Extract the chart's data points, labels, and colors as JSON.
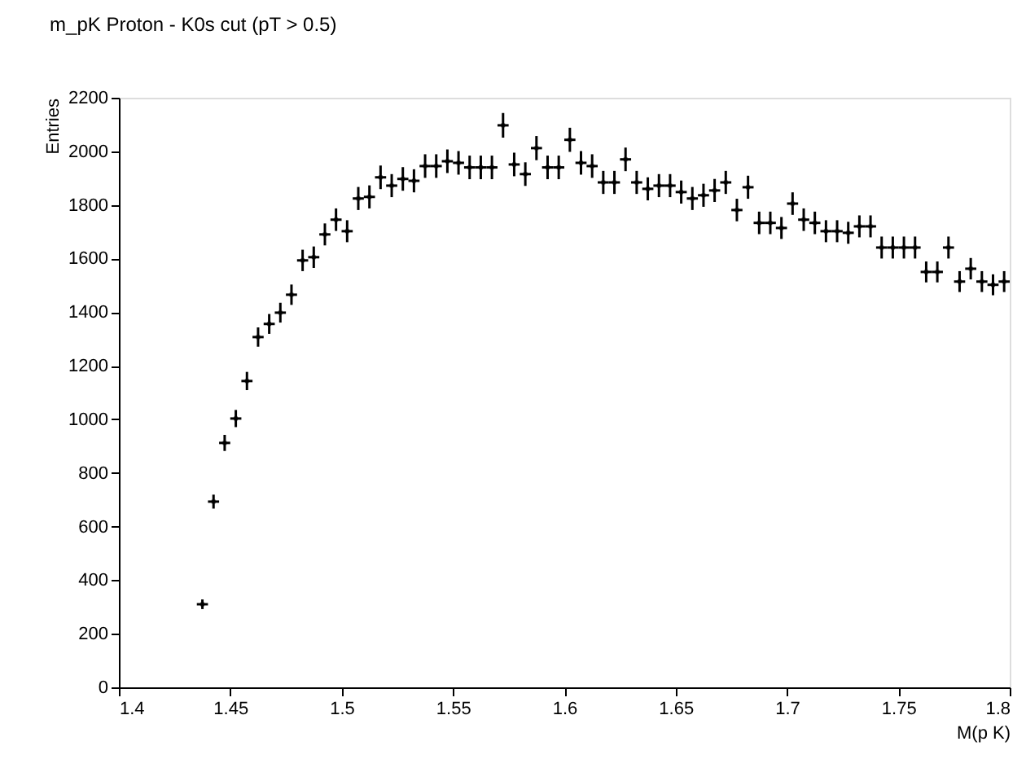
{
  "chart_data": {
    "type": "scatter",
    "title": "m_pK  Proton - K0s cut (pT > 0.5)",
    "xlabel": "M(p K)",
    "ylabel": "Entries",
    "x": [
      1.4375,
      1.4425,
      1.4475,
      1.4525,
      1.4575,
      1.4625,
      1.4675,
      1.4725,
      1.4775,
      1.4825,
      1.4875,
      1.4925,
      1.4975,
      1.5025,
      1.5075,
      1.5125,
      1.5175,
      1.5225,
      1.5275,
      1.5325,
      1.5375,
      1.5425,
      1.5475,
      1.5525,
      1.5575,
      1.5625,
      1.5675,
      1.5725,
      1.5775,
      1.5825,
      1.5875,
      1.5925,
      1.5975,
      1.6025,
      1.6075,
      1.6125,
      1.6175,
      1.6225,
      1.6275,
      1.6325,
      1.6375,
      1.6425,
      1.6475,
      1.6525,
      1.6575,
      1.6625,
      1.6675,
      1.6725,
      1.6775,
      1.6825,
      1.6875,
      1.6925,
      1.6975,
      1.7025,
      1.7075,
      1.7125,
      1.7175,
      1.7225,
      1.7275,
      1.7325,
      1.7375,
      1.7425,
      1.7475,
      1.7525,
      1.7575,
      1.7625,
      1.7675,
      1.7725,
      1.7775,
      1.7825,
      1.7875,
      1.7925,
      1.7975
    ],
    "values": [
      310,
      693,
      912,
      1003,
      1143,
      1307,
      1356,
      1398,
      1465,
      1593,
      1605,
      1690,
      1745,
      1702,
      1824,
      1830,
      1903,
      1872,
      1897,
      1890,
      1945,
      1945,
      1963,
      1957,
      1940,
      1940,
      1940,
      2097,
      1951,
      1915,
      2012,
      1940,
      1940,
      2043,
      1957,
      1945,
      1884,
      1884,
      1970,
      1884,
      1860,
      1872,
      1872,
      1848,
      1824,
      1836,
      1854,
      1884,
      1781,
      1866,
      1733,
      1733,
      1714,
      1805,
      1745,
      1733,
      1702,
      1702,
      1696,
      1720,
      1720,
      1641,
      1641,
      1641,
      1641,
      1550,
      1550,
      1641,
      1514,
      1562,
      1514,
      1502,
      1514
    ],
    "errors": [
      18,
      26,
      30,
      32,
      34,
      36,
      37,
      37,
      38,
      40,
      40,
      41,
      42,
      41,
      43,
      43,
      44,
      43,
      44,
      43,
      44,
      44,
      44,
      44,
      44,
      44,
      44,
      46,
      44,
      44,
      45,
      44,
      44,
      45,
      44,
      44,
      43,
      43,
      44,
      43,
      43,
      43,
      43,
      43,
      43,
      43,
      43,
      43,
      42,
      43,
      42,
      42,
      41,
      42,
      42,
      42,
      41,
      41,
      41,
      41,
      41,
      41,
      41,
      41,
      41,
      39,
      39,
      41,
      39,
      40,
      39,
      39,
      39
    ],
    "xerrors": [
      0.0025,
      0.0025,
      0.0025,
      0.0025,
      0.0025,
      0.0025,
      0.0025,
      0.0025,
      0.0025,
      0.0025,
      0.0025,
      0.0025,
      0.0025,
      0.0025,
      0.0025,
      0.0025,
      0.0025,
      0.0025,
      0.0025,
      0.0025,
      0.0025,
      0.0025,
      0.0025,
      0.0025,
      0.0025,
      0.0025,
      0.0025,
      0.0025,
      0.0025,
      0.0025,
      0.0025,
      0.0025,
      0.0025,
      0.0025,
      0.0025,
      0.0025,
      0.0025,
      0.0025,
      0.0025,
      0.0025,
      0.0025,
      0.0025,
      0.0025,
      0.0025,
      0.0025,
      0.0025,
      0.0025,
      0.0025,
      0.0025,
      0.0025,
      0.0025,
      0.0025,
      0.0025,
      0.0025,
      0.0025,
      0.0025,
      0.0025,
      0.0025,
      0.0025,
      0.0025,
      0.0025,
      0.0025,
      0.0025,
      0.0025,
      0.0025,
      0.0025,
      0.0025,
      0.0025,
      0.0025,
      0.0025,
      0.0025,
      0.0025,
      0.0025
    ],
    "color": "#000000",
    "grid": false,
    "xlim": [
      1.4,
      1.8
    ],
    "xticks": [
      1.4,
      1.45,
      1.5,
      1.55,
      1.6,
      1.65,
      1.7,
      1.75,
      1.8
    ],
    "ylim": [
      0,
      2200
    ],
    "yticks": [
      0,
      200,
      400,
      600,
      800,
      1000,
      1200,
      1400,
      1600,
      1800,
      2000,
      2200
    ]
  }
}
